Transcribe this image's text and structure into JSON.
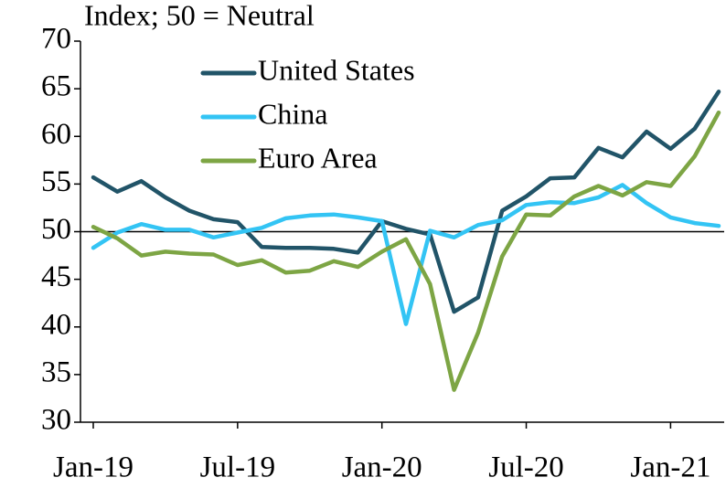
{
  "chart_data": {
    "type": "line",
    "y_axis_label": "Index; 50 = Neutral",
    "categories": [
      "Jan-19",
      null,
      null,
      null,
      null,
      null,
      "Jul-19",
      null,
      null,
      null,
      null,
      null,
      "Jan-20",
      null,
      null,
      null,
      null,
      null,
      "Jul-20",
      null,
      null,
      null,
      null,
      null,
      "Jan-21",
      null,
      null
    ],
    "series": [
      {
        "name": "United States",
        "color": "#215468",
        "values": [
          55.7,
          54.2,
          55.3,
          53.6,
          52.2,
          51.3,
          51.0,
          48.4,
          48.3,
          48.3,
          48.2,
          47.8,
          51.1,
          50.3,
          49.7,
          41.6,
          43.1,
          52.2,
          53.7,
          55.6,
          55.7,
          58.8,
          57.8,
          60.5,
          58.7,
          60.8,
          64.7
        ]
      },
      {
        "name": "China",
        "color": "#33c4f4",
        "values": [
          48.3,
          49.9,
          50.8,
          50.2,
          50.2,
          49.4,
          49.9,
          50.4,
          51.4,
          51.7,
          51.8,
          51.5,
          51.1,
          40.3,
          50.1,
          49.4,
          50.7,
          51.2,
          52.8,
          53.1,
          53.0,
          53.6,
          54.9,
          53.0,
          51.5,
          50.9,
          50.6
        ]
      },
      {
        "name": "Euro Area",
        "color": "#7da544",
        "values": [
          50.5,
          49.3,
          47.5,
          47.9,
          47.7,
          47.6,
          46.5,
          47.0,
          45.7,
          45.9,
          46.9,
          46.3,
          47.9,
          49.2,
          44.5,
          33.4,
          39.4,
          47.4,
          51.8,
          51.7,
          53.7,
          54.8,
          53.8,
          55.2,
          54.8,
          57.9,
          62.5
        ]
      }
    ],
    "ylim": [
      30,
      70
    ],
    "yticks": [
      30,
      35,
      40,
      45,
      50,
      55,
      60,
      65,
      70
    ],
    "reference_line": 50,
    "grid": false,
    "legend": "upper left"
  }
}
